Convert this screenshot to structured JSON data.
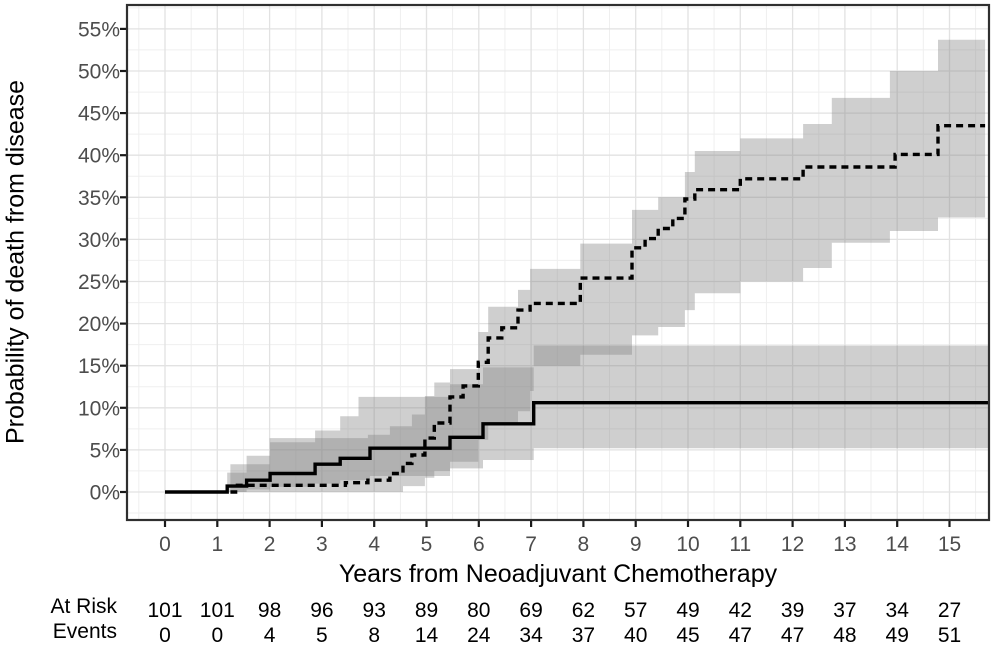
{
  "chart_data": {
    "type": "line",
    "subtype": "cumulative-incidence-step-curves-with-95pct-ci-bands",
    "title": "",
    "xlabel": "Years from Neoadjuvant Chemotherapy",
    "ylabel": "Probability of death from disease",
    "y_unit": "percent",
    "xlim": [
      -0.73,
      15.76
    ],
    "ylim": [
      -3.4,
      57.7
    ],
    "x_ticks": [
      0,
      1,
      2,
      3,
      4,
      5,
      6,
      7,
      8,
      9,
      10,
      11,
      12,
      13,
      14,
      15
    ],
    "y_ticks": [
      0,
      5,
      10,
      15,
      20,
      25,
      30,
      35,
      40,
      45,
      50,
      55
    ],
    "grid": true,
    "legend": false,
    "colors": {
      "curve": "#000000",
      "ci_band": "#808080",
      "grid_major": "#e2e2e2",
      "grid_minor": "#efefef",
      "axis_text": "#4d4d4d",
      "risk_text": "#000000",
      "panel_border": "#2f2f2f"
    },
    "series": [
      {
        "name": "solid-curve",
        "line_style": "solid",
        "x_end": 15.76,
        "steps": [
          [
            0,
            0
          ],
          [
            1.19,
            0.7
          ],
          [
            1.56,
            1.4
          ],
          [
            2.01,
            2.2
          ],
          [
            2.87,
            3.3
          ],
          [
            3.35,
            4.0
          ],
          [
            3.92,
            5.2
          ],
          [
            5.45,
            6.5
          ],
          [
            6.08,
            8.1
          ],
          [
            7.05,
            10.6
          ]
        ],
        "ci_upper": [
          [
            1.19,
            2.3
          ],
          [
            1.56,
            4.3
          ],
          [
            2.01,
            5.9
          ],
          [
            2.87,
            7.3
          ],
          [
            3.35,
            9.0
          ],
          [
            3.7,
            11.3
          ],
          [
            5.45,
            12.8
          ],
          [
            6.08,
            14.8
          ],
          [
            7.05,
            17.4
          ]
        ],
        "ci_lower": [
          [
            1.19,
            0
          ],
          [
            1.56,
            0.3
          ],
          [
            2.01,
            0.6
          ],
          [
            2.87,
            1.0
          ],
          [
            3.35,
            1.4
          ],
          [
            3.92,
            1.9
          ],
          [
            5.45,
            2.8
          ],
          [
            6.08,
            3.8
          ],
          [
            7.05,
            5.2
          ]
        ]
      },
      {
        "name": "dashed-curve",
        "line_style": "dashed",
        "x_end": 15.68,
        "steps": [
          [
            1.25,
            0
          ],
          [
            1.35,
            0.8
          ],
          [
            3.45,
            1.1
          ],
          [
            3.88,
            1.4
          ],
          [
            4.3,
            2.2
          ],
          [
            4.55,
            3.4
          ],
          [
            4.72,
            4.4
          ],
          [
            4.97,
            6.4
          ],
          [
            5.15,
            8.2
          ],
          [
            5.45,
            11.3
          ],
          [
            5.7,
            12.6
          ],
          [
            5.99,
            15.4
          ],
          [
            6.18,
            18.3
          ],
          [
            6.44,
            19.5
          ],
          [
            6.75,
            21.6
          ],
          [
            6.98,
            22.4
          ],
          [
            7.94,
            25.4
          ],
          [
            8.93,
            29.0
          ],
          [
            9.18,
            30.1
          ],
          [
            9.43,
            31.3
          ],
          [
            9.71,
            32.5
          ],
          [
            9.94,
            34.8
          ],
          [
            10.13,
            35.9
          ],
          [
            11.0,
            37.2
          ],
          [
            12.2,
            38.6
          ],
          [
            13.96,
            40.1
          ],
          [
            14.78,
            43.5
          ]
        ],
        "ci_upper": [
          [
            1.25,
            3.3
          ],
          [
            2.0,
            6.4
          ],
          [
            3.88,
            6.8
          ],
          [
            4.3,
            7.8
          ],
          [
            4.72,
            9.2
          ],
          [
            4.97,
            11.4
          ],
          [
            5.15,
            13.0
          ],
          [
            5.45,
            14.6
          ],
          [
            5.99,
            19.0
          ],
          [
            6.18,
            22.0
          ],
          [
            6.75,
            24.0
          ],
          [
            6.98,
            26.5
          ],
          [
            7.94,
            29.5
          ],
          [
            8.93,
            33.5
          ],
          [
            9.43,
            35.0
          ],
          [
            9.94,
            38.0
          ],
          [
            10.13,
            40.5
          ],
          [
            11.0,
            42.0
          ],
          [
            12.2,
            43.7
          ],
          [
            12.75,
            46.8
          ],
          [
            13.86,
            50.0
          ],
          [
            14.78,
            53.7
          ]
        ],
        "ci_lower": [
          [
            1.25,
            0
          ],
          [
            4.55,
            0.7
          ],
          [
            4.97,
            1.7
          ],
          [
            5.15,
            2.5
          ],
          [
            5.45,
            3.6
          ],
          [
            5.99,
            6.2
          ],
          [
            6.18,
            8.0
          ],
          [
            6.75,
            9.6
          ],
          [
            6.98,
            12.0
          ],
          [
            7.05,
            15.0
          ],
          [
            7.94,
            16.3
          ],
          [
            8.93,
            18.6
          ],
          [
            9.43,
            19.6
          ],
          [
            9.94,
            21.6
          ],
          [
            10.13,
            23.6
          ],
          [
            11.0,
            25.0
          ],
          [
            12.2,
            26.6
          ],
          [
            12.75,
            29.6
          ],
          [
            13.86,
            31.0
          ],
          [
            14.78,
            32.6
          ]
        ]
      }
    ],
    "risk_table": {
      "rows": [
        {
          "label": "At Risk",
          "values": [
            101,
            101,
            98,
            96,
            93,
            89,
            80,
            69,
            62,
            57,
            49,
            42,
            39,
            37,
            34,
            27
          ]
        },
        {
          "label": "Events",
          "values": [
            0,
            0,
            4,
            5,
            8,
            14,
            24,
            34,
            37,
            40,
            45,
            47,
            47,
            48,
            49,
            51
          ]
        }
      ]
    }
  }
}
